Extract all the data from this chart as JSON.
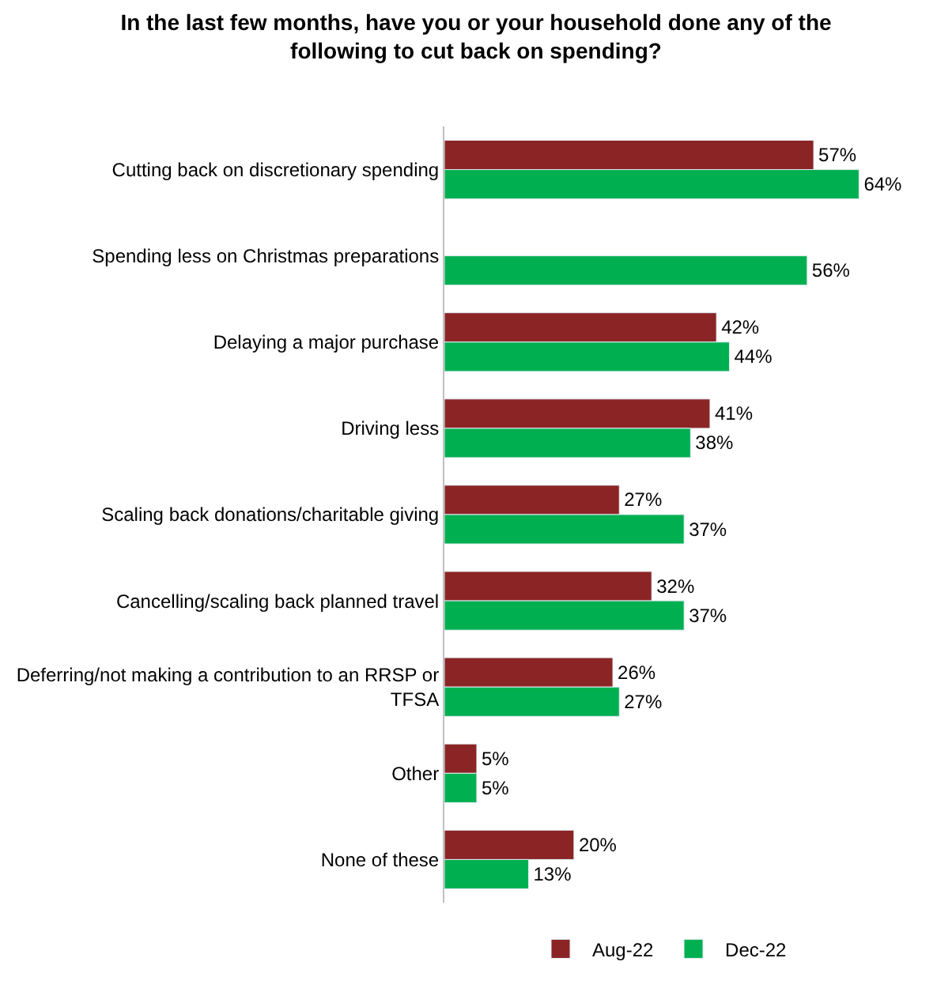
{
  "chart_data": {
    "type": "bar",
    "orientation": "horizontal",
    "title": "In the last few months, have you or your household done any of the following to cut back on spending?",
    "categories": [
      "Cutting back on discretionary spending",
      "Spending less on Christmas preparations",
      "Delaying a major purchase",
      "Driving less",
      "Scaling back donations/charitable giving",
      "Cancelling/scaling back planned travel",
      "Deferring/not making a contribution to an RRSP or TFSA",
      "Other",
      "None of these"
    ],
    "series": [
      {
        "name": "Aug-22",
        "color": "#8b2525",
        "values": [
          57,
          null,
          42,
          41,
          27,
          32,
          26,
          5,
          20
        ],
        "value_labels": [
          "57%",
          null,
          "42%",
          "41%",
          "27%",
          "32%",
          "26%",
          "5%",
          "20%"
        ]
      },
      {
        "name": "Dec-22",
        "color": "#00b050",
        "values": [
          64,
          56,
          44,
          38,
          37,
          37,
          27,
          5,
          13
        ],
        "value_labels": [
          "64%",
          "56%",
          "44%",
          "38%",
          "37%",
          "37%",
          "27%",
          "5%",
          "13%"
        ]
      }
    ],
    "legend": "bottom"
  }
}
